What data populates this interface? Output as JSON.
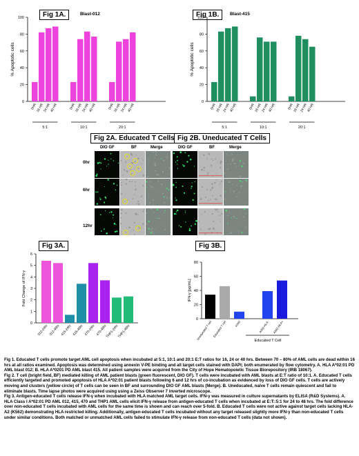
{
  "charts": [
    {
      "id": "fig1a",
      "chart_data": {
        "type": "bar",
        "figure_label": "Fig 1A.",
        "subtitle": "Blast-012",
        "ylabel": "% Apoptotic cells",
        "ylim": [
          0,
          100
        ],
        "yticks": [
          0,
          20,
          40,
          60,
          80,
          100
        ],
        "color": "#ee44dd",
        "groups": [
          "5:1",
          "10:1",
          "20:1"
        ],
        "categories": [
          "0HR",
          "16 HR",
          "24 HR",
          "40 HR"
        ],
        "values": [
          [
            23,
            82,
            87,
            89
          ],
          [
            23,
            74,
            83,
            77
          ],
          [
            23,
            71,
            74,
            82
          ]
        ]
      }
    },
    {
      "id": "fig1b",
      "chart_data": {
        "type": "bar",
        "figure_label": "Fig 1B.",
        "subtitle": "Blast-415",
        "ylabel": "% Apoptotic cells",
        "ylim": [
          0,
          100
        ],
        "yticks": [
          0,
          20,
          40,
          60,
          80,
          100
        ],
        "color": "#1f8f5f",
        "groups": [
          "5:1",
          "10:1",
          "20:1"
        ],
        "categories": [
          "0HR",
          "16 HR",
          "24 HR",
          "40 HR"
        ],
        "values": [
          [
            23,
            83,
            87,
            89
          ],
          [
            6,
            76,
            71,
            71
          ],
          [
            6,
            78,
            74,
            65
          ]
        ]
      }
    },
    {
      "id": "fig3a",
      "chart_data": {
        "type": "bar",
        "figure_label": "Fig 3A.",
        "ylabel": "Fold Change of IFN-γ",
        "ylim": [
          0,
          6
        ],
        "yticks": [
          0,
          1,
          2,
          3,
          4,
          5,
          6
        ],
        "categories": [
          "012-24hr",
          "012-48hr",
          "415-24hr",
          "415-48hr",
          "470-24hr",
          "470-48hr",
          "THP1-24hr",
          "THP1-48hr"
        ],
        "values": [
          5.4,
          5.2,
          0.7,
          3.4,
          5.2,
          3.7,
          2.2,
          2.3
        ],
        "colors": [
          "#ee55dd",
          "#ee55dd",
          "#1f8fa8",
          "#1f8fa8",
          "#aa22ee",
          "#aa22ee",
          "#22bb77",
          "#22bb77"
        ]
      }
    },
    {
      "id": "fig3b",
      "chart_data": {
        "type": "bar",
        "figure_label": "Fig 3B.",
        "ylabel": "IFN-γ [pg/mL]",
        "ylim": [
          0,
          80
        ],
        "yticks": [
          0,
          20,
          40,
          60,
          80
        ],
        "categories": [
          "Uneducated T cell",
          "Educated T cell",
          "K562",
          "A562-HLA-",
          "A562-HLA+"
        ],
        "values": [
          34,
          46,
          10,
          39,
          54
        ],
        "colors": [
          "#000000",
          "#aaaaaa",
          "#2244ee",
          "#2244ee",
          "#1a1add"
        ],
        "bracket_label": "Educated T Cell"
      }
    }
  ],
  "fig2": {
    "a_title": "Fig 2A. Educated T Cells",
    "b_title": "Fig 2B. Uneducated T Cells",
    "columns": [
      "DIO GF",
      "BF",
      "Merge"
    ],
    "rows": [
      "0hr",
      "6hr",
      "12hr"
    ]
  },
  "caption": {
    "p1": "Fig 1. Educated T cells promote target AML cell apoptosis when incubated at 5:1, 10:1 and 20:1 E:T ratios for 16, 24 or 40 hrs. Between 70 – 80% of AML cells are dead within 16 hrs at all ratios examined. Apoptosis was determined using annexin V-PE binding and all target cells stained with DAPI; both enumerated by flow cytometry. A. HLA A*02:01 PD AML blast 012; B. HLA A*0201 PD AML blast 415. All patient samples were acquired from the City of Hope Hematopoietic Tissue Biorepository (IRB 18067).",
    "p2": "Fig 2. T cell (bright field, BF) mediated killing of AML patient blasts (green fluorescent, DIO GF). T cells were incubated with AML blasts at E:T ratio of 10:1. A. Educated T cells efficiently targeted and promoted apoptosis of HLA A*02:01 patient blasts following 6 and 12 hrs of co-incubation as evidenced by loss of DIO GF cells. T cells are actively moving and clusters (yellow circle) of T cells can be seen in BF and surrounding DIO GF AML blasts (Merge). B. Uneducated, naïve T cells remain quiescent and fail to eliminate blasts. Time lapse photos were acquired using using a Zeiss Observer 7 inverted microscope.",
    "p3": "Fig 3. Antigen-educated T cells release IFN-γ when incubated with HLA matched AML target cells. IFN-γ was measured in culture supernatants by ELISA (R&D Systems). A. HLA Class I A*02:01 PD AML 012, 415, 470 and THP1 AML cells elicit IFN-γ release from antigen-educated T cells when incubated at E:T::5:1 for 24 to 48 hrs. The fold difference over non-educated T cells incubated with AML cells for the same time is shown and can reach over 5-fold. B. Educated T cells were not active against target cells lacking HLA-A2 (K562) demonstrating HLA restricted killing. Additionally, antigen-educated T cells incubated without any target released slightly more IFN-γ than non-educated T cells under similar conditions. Both matched or unmatched AML cells failed to stimulate IFN-γ release from non-educated T cells (data not shown)."
  }
}
